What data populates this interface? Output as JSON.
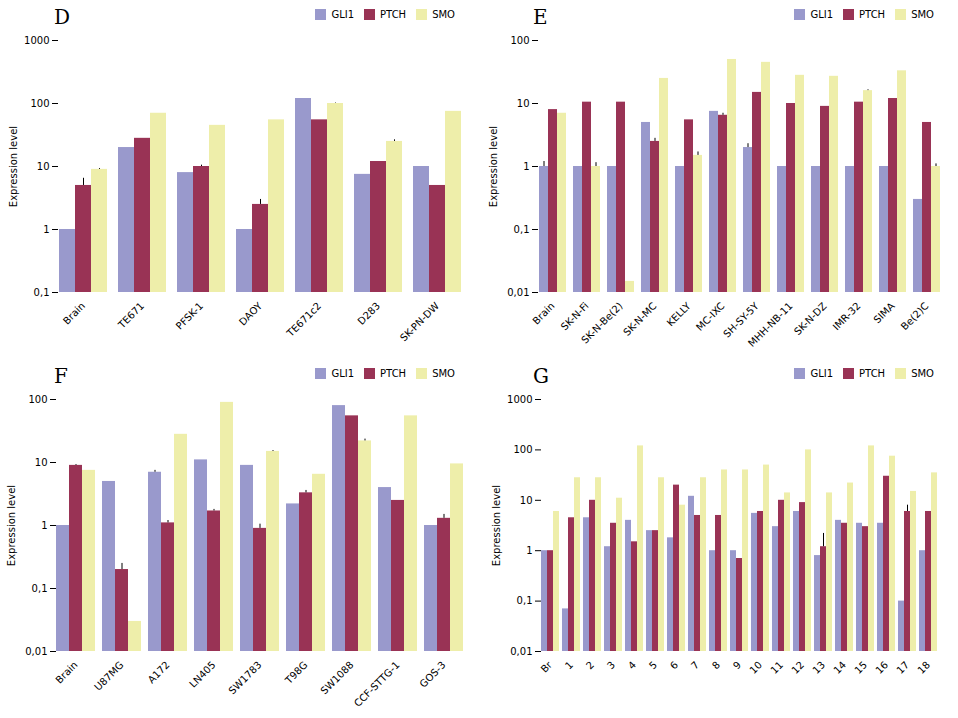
{
  "chart_data": [
    {
      "type": "bar",
      "title": "D",
      "ylabel": "Expression level",
      "categories": [
        "Brain",
        "TE671",
        "PFSK-1",
        "DAOY",
        "TE671c2",
        "D283",
        "SK-PN-DW"
      ],
      "series": [
        {
          "name": "GLI1",
          "color": "#9999cc",
          "values": [
            1.0,
            20.0,
            8.0,
            1.0,
            120.0,
            7.5,
            10.0
          ],
          "errors": [
            0.0,
            0.0,
            0.0,
            0.0,
            0.0,
            0.0,
            0.0
          ]
        },
        {
          "name": "PTCH",
          "color": "#993355",
          "values": [
            5.0,
            28.0,
            10.0,
            2.5,
            55.0,
            12.0,
            5.0
          ],
          "errors": [
            1.5,
            0.0,
            0.5,
            0.5,
            0.0,
            0.0,
            0.0
          ]
        },
        {
          "name": "SMO",
          "color": "#eeeeaa",
          "values": [
            9.0,
            70.0,
            45.0,
            55.0,
            100.0,
            25.0,
            75.0
          ],
          "errors": [
            0.3,
            0.0,
            0.0,
            0.0,
            1.5,
            1.5,
            0.0
          ]
        }
      ],
      "ylim": [
        0.1,
        1000
      ],
      "yticks": [
        {
          "value": 0.1,
          "label": "0,1"
        },
        1,
        10,
        100,
        1000
      ],
      "log": "y",
      "grid": false,
      "legend": "upper right"
    },
    {
      "type": "bar",
      "title": "E",
      "ylabel": "Expression level",
      "categories": [
        "Brain",
        "SK-N-Fi",
        "SK-N-Be(2)",
        "SK-N-MC",
        "KELLY",
        "MC-IXC",
        "SH-SY-5Y",
        "MHH-NB-11",
        "SK-N-DZ",
        "IMR-32",
        "SIMA",
        "Be(2)C"
      ],
      "series": [
        {
          "name": "GLI1",
          "color": "#9999cc",
          "values": [
            1.0,
            1.0,
            1.0,
            5.0,
            1.0,
            7.5,
            2.0,
            1.0,
            1.0,
            1.0,
            1.0,
            0.3
          ],
          "errors": [
            0.2,
            0.0,
            0.0,
            0.0,
            0.0,
            0.0,
            0.3,
            0.0,
            0.0,
            0.0,
            0.0,
            0.0
          ]
        },
        {
          "name": "PTCH",
          "color": "#993355",
          "values": [
            8.0,
            10.5,
            10.5,
            2.5,
            5.5,
            6.5,
            15.0,
            10.0,
            9.0,
            10.5,
            12.0,
            5.0
          ],
          "errors": [
            0.0,
            0.0,
            0.0,
            0.3,
            0.0,
            0.5,
            0.0,
            0.0,
            0.0,
            0.0,
            0.0,
            0.0
          ]
        },
        {
          "name": "SMO",
          "color": "#eeeeaa",
          "values": [
            7.0,
            1.0,
            0.015,
            25.0,
            1.5,
            50.0,
            45.0,
            28.0,
            27.0,
            16.0,
            33.0,
            1.0
          ],
          "errors": [
            0.0,
            0.15,
            0.0,
            0.0,
            0.2,
            0.0,
            0.0,
            0.0,
            0.0,
            0.5,
            0.0,
            0.1
          ]
        }
      ],
      "ylim": [
        0.01,
        100
      ],
      "yticks": [
        {
          "value": 0.01,
          "label": "0,01"
        },
        {
          "value": 0.1,
          "label": "0,1"
        },
        1,
        10,
        100
      ],
      "log": "y",
      "grid": false,
      "legend": "upper right"
    },
    {
      "type": "bar",
      "title": "F",
      "ylabel": "Expression level",
      "categories": [
        "Brain",
        "U87MG",
        "A172",
        "LN405",
        "SW1783",
        "T98G",
        "SW1088",
        "CCF-STTG-1",
        "GOS-3"
      ],
      "series": [
        {
          "name": "GLI1",
          "color": "#9999cc",
          "values": [
            1.0,
            5.0,
            7.0,
            11.0,
            9.0,
            2.2,
            80.0,
            4.0,
            1.0
          ],
          "errors": [
            0.0,
            0.0,
            0.5,
            0.0,
            0.0,
            0.0,
            0.0,
            0.0,
            0.0
          ]
        },
        {
          "name": "PTCH",
          "color": "#993355",
          "values": [
            9.0,
            0.2,
            1.1,
            1.7,
            0.9,
            3.3,
            55.0,
            2.5,
            1.3
          ],
          "errors": [
            0.3,
            0.05,
            0.1,
            0.1,
            0.15,
            0.3,
            0.0,
            0.0,
            0.2
          ]
        },
        {
          "name": "SMO",
          "color": "#eeeeaa",
          "values": [
            7.5,
            0.03,
            28.0,
            90.0,
            15.0,
            6.5,
            22.0,
            55.0,
            9.5
          ],
          "errors": [
            0.0,
            0.0,
            0.0,
            0.0,
            0.5,
            0.0,
            1.5,
            0.0,
            0.0
          ]
        }
      ],
      "ylim": [
        0.01,
        100
      ],
      "yticks": [
        {
          "value": 0.01,
          "label": "0,01"
        },
        {
          "value": 0.1,
          "label": "0,1"
        },
        1,
        10,
        100
      ],
      "log": "y",
      "grid": false,
      "legend": "upper right"
    },
    {
      "type": "bar",
      "title": "G",
      "ylabel": "Expression level",
      "categories": [
        "Br",
        "1",
        "2",
        "3",
        "4",
        "5",
        "6",
        "7",
        "8",
        "9",
        "10",
        "11",
        "12",
        "13",
        "14",
        "15",
        "16",
        "17",
        "18"
      ],
      "series": [
        {
          "name": "GLI1",
          "color": "#9999cc",
          "values": [
            1.0,
            0.07,
            4.5,
            1.2,
            4.0,
            2.5,
            1.8,
            12.0,
            1.0,
            1.0,
            5.5,
            3.0,
            6.0,
            0.8,
            4.0,
            3.5,
            3.5,
            0.1,
            1.0
          ],
          "errors": [
            0,
            0,
            0,
            0,
            0,
            0,
            0,
            0,
            0,
            0,
            0,
            0,
            0,
            0,
            0,
            0,
            0,
            0,
            0
          ]
        },
        {
          "name": "PTCH",
          "color": "#993355",
          "values": [
            1.0,
            4.5,
            10.0,
            3.5,
            1.5,
            2.5,
            20.0,
            5.0,
            5.0,
            0.7,
            6.0,
            10.0,
            9.0,
            1.2,
            3.5,
            3.0,
            30.0,
            6.0,
            6.0
          ],
          "errors": [
            0,
            0,
            0,
            0,
            0,
            0,
            0,
            0,
            0,
            0,
            0,
            0,
            0,
            1.0,
            0,
            0,
            0,
            2.0,
            0
          ]
        },
        {
          "name": "SMO",
          "color": "#eeeeaa",
          "values": [
            6.0,
            28.0,
            28.0,
            11.0,
            120.0,
            28.0,
            8.0,
            28.0,
            40.0,
            40.0,
            50.0,
            14.0,
            100.0,
            14.0,
            22.0,
            120.0,
            75.0,
            15.0,
            35.0
          ],
          "errors": [
            0,
            0,
            0,
            0,
            0,
            0,
            0,
            0,
            0,
            0,
            0,
            0,
            0,
            0,
            0,
            0,
            0,
            0,
            0
          ]
        }
      ],
      "ylim": [
        0.01,
        1000
      ],
      "yticks": [
        {
          "value": 0.01,
          "label": "0,01"
        },
        {
          "value": 0.1,
          "label": "0,1"
        },
        1,
        10,
        100,
        1000
      ],
      "log": "y",
      "grid": false,
      "legend": "upper right"
    }
  ]
}
